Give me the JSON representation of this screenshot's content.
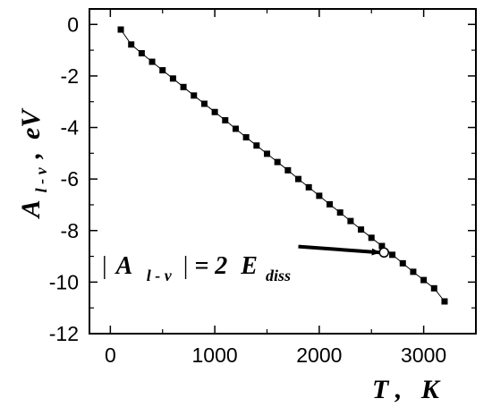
{
  "chart_data": {
    "type": "scatter",
    "xlabel": {
      "main": "T",
      "sep": ",",
      "unit": "K"
    },
    "ylabel": {
      "main": "A",
      "sub": "l - v",
      "sep": ",",
      "unit": "eV"
    },
    "xlim": [
      -200,
      3500
    ],
    "ylim": [
      -12,
      0.6
    ],
    "xticks": [
      0,
      1000,
      2000,
      3000
    ],
    "yticks": [
      0,
      -2,
      -4,
      -6,
      -8,
      -10,
      -12
    ],
    "xtick_labels": [
      "0",
      "1000",
      "2000",
      "3000"
    ],
    "ytick_labels": [
      "0",
      "-2",
      "-4",
      "-6",
      "-8",
      "-10",
      "-12"
    ],
    "grid": false,
    "series": [
      {
        "marker": "square",
        "line": true,
        "x": [
          100,
          200,
          300,
          400,
          500,
          600,
          700,
          800,
          900,
          1000,
          1100,
          1200,
          1300,
          1400,
          1500,
          1600,
          1700,
          1800,
          1900,
          2000,
          2100,
          2200,
          2300,
          2400,
          2500,
          2600,
          2700,
          2800,
          2900,
          3000,
          3100,
          3200
        ],
        "y": [
          -0.2,
          -0.78,
          -1.12,
          -1.45,
          -1.78,
          -2.1,
          -2.43,
          -2.76,
          -3.08,
          -3.4,
          -3.72,
          -4.05,
          -4.38,
          -4.7,
          -5.02,
          -5.34,
          -5.66,
          -6.0,
          -6.32,
          -6.65,
          -6.98,
          -7.3,
          -7.63,
          -7.96,
          -8.28,
          -8.6,
          -8.94,
          -9.27,
          -9.6,
          -9.92,
          -10.24,
          -10.75
        ]
      }
    ],
    "highlight_point": {
      "x": 2620,
      "y": -8.85,
      "marker": "open-circle"
    },
    "annotation": {
      "bar_left": "|",
      "a": "A",
      "a_sub": "l - v",
      "bar_right": "|",
      "eq": "= 2",
      "e": "E",
      "e_sub": "diss",
      "arrow_from": {
        "x": 1800,
        "y": -8.62
      },
      "arrow_to": {
        "x": 2580,
        "y": -8.85
      }
    }
  }
}
